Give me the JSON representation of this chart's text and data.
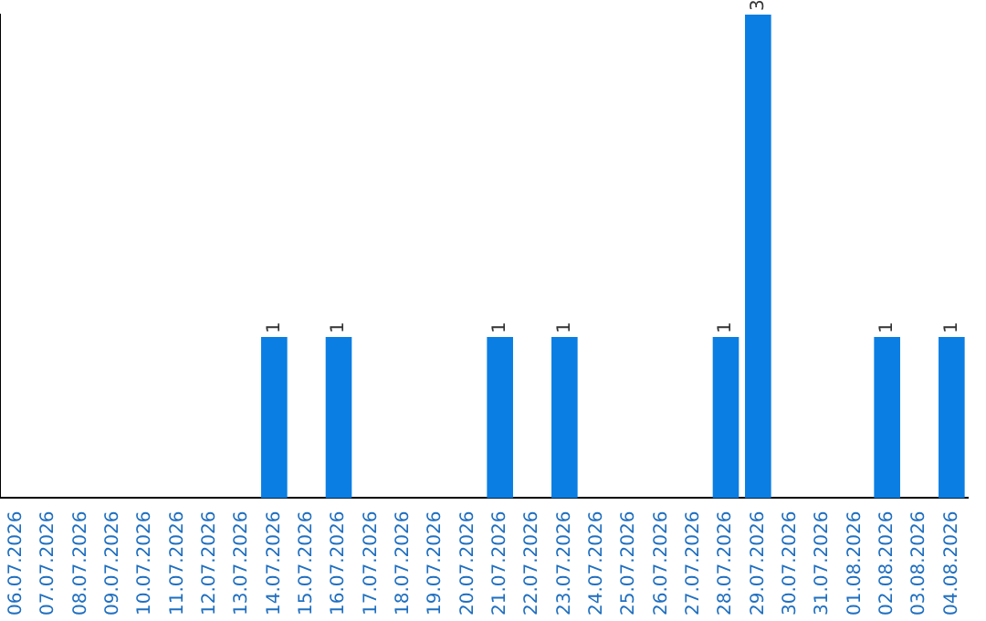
{
  "chart_data": {
    "type": "bar",
    "categories": [
      "06.07.2026",
      "07.07.2026",
      "08.07.2026",
      "09.07.2026",
      "10.07.2026",
      "11.07.2026",
      "12.07.2026",
      "13.07.2026",
      "14.07.2026",
      "15.07.2026",
      "16.07.2026",
      "17.07.2026",
      "18.07.2026",
      "19.07.2026",
      "20.07.2026",
      "21.07.2026",
      "22.07.2026",
      "23.07.2026",
      "24.07.2026",
      "25.07.2026",
      "26.07.2026",
      "27.07.2026",
      "28.07.2026",
      "29.07.2026",
      "30.07.2026",
      "31.07.2026",
      "01.08.2026",
      "02.08.2026",
      "03.08.2026",
      "04.08.2026"
    ],
    "values": [
      0,
      0,
      0,
      0,
      0,
      0,
      0,
      0,
      1,
      0,
      1,
      0,
      0,
      0,
      0,
      1,
      0,
      1,
      0,
      0,
      0,
      0,
      1,
      3,
      0,
      0,
      0,
      1,
      0,
      1
    ],
    "value_labels": [
      null,
      null,
      null,
      null,
      null,
      null,
      null,
      null,
      "1",
      null,
      "1",
      null,
      null,
      null,
      null,
      "1",
      null,
      "1",
      null,
      null,
      null,
      null,
      "1",
      "3",
      null,
      null,
      null,
      "1",
      null,
      "1"
    ],
    "color": "#0a7ee3",
    "grid": false,
    "legend": false,
    "tick_labels": "x"
  }
}
